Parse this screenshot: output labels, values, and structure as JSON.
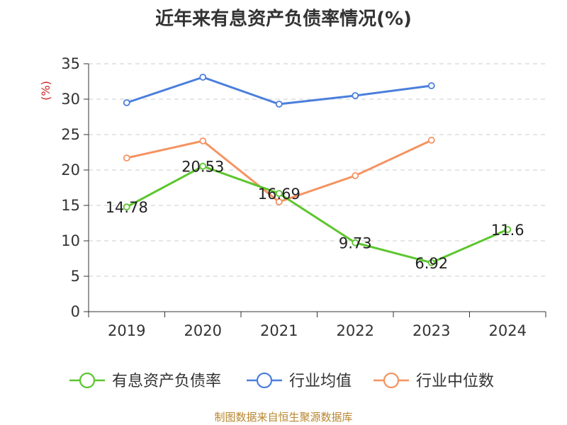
{
  "chart_data": {
    "type": "line",
    "title": "近年来有息资产负债率情况(%)",
    "ylabel": "(%)",
    "xlabel": "",
    "categories": [
      "2019",
      "2020",
      "2021",
      "2022",
      "2023",
      "2024"
    ],
    "ylim": [
      0,
      35
    ],
    "yticks": [
      0,
      5,
      10,
      15,
      20,
      25,
      30,
      35
    ],
    "grid": true,
    "legend_position": "bottom",
    "series": [
      {
        "name": "有息资产负债率",
        "color": "#5cc62e",
        "values": [
          14.78,
          20.53,
          16.69,
          9.73,
          6.92,
          11.6
        ],
        "labels": [
          "14.78",
          "20.53",
          "16.69",
          "9.73",
          "6.92",
          "11.6"
        ]
      },
      {
        "name": "行业均值",
        "color": "#4a7fdc",
        "values": [
          29.5,
          33.1,
          29.3,
          30.5,
          31.9,
          null
        ]
      },
      {
        "name": "行业中位数",
        "color": "#f59361",
        "values": [
          21.7,
          24.1,
          15.5,
          19.2,
          24.2,
          null
        ]
      }
    ]
  },
  "source_note": "制图数据来自恒生聚源数据库"
}
